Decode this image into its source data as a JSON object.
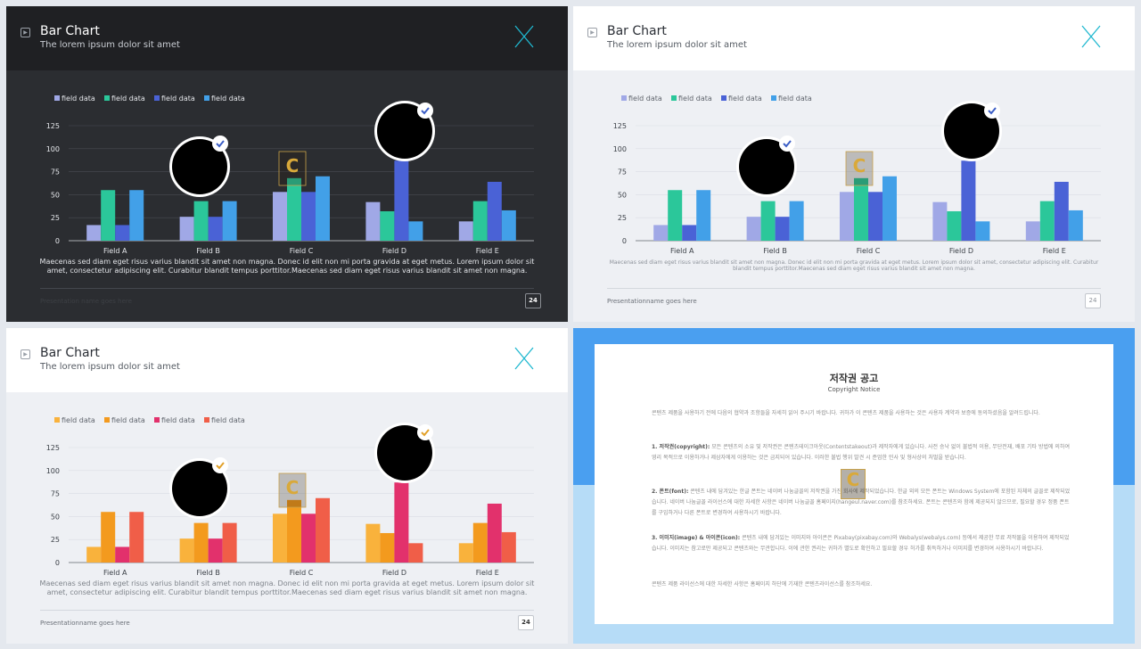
{
  "slides": [
    {
      "title": "Bar Chart",
      "subtitle": "The lorem ipsum dolor sit amet",
      "caption": "Maecenas sed diam eget risus varius blandit sit amet non magna. Donec id elit non mi porta gravida at eget metus. Lorem ipsum dolor sit amet, consectetur adipiscing elit. Curabitur blandit tempus porttitor.Maecenas sed diam eget risus varius blandit sit amet non magna.",
      "footer": "Presentation name goes here",
      "page": "24"
    },
    {
      "title": "Bar Chart",
      "subtitle": "The lorem ipsum dolor sit amet",
      "caption": "Maecenas sed diam eget risus varius blandit sit amet non magna. Donec id elit non mi porta gravida at eget metus. Lorem ipsum dolor sit amet, consectetur adipiscing elit. Curabitur blandit tempus porttitor.Maecenas sed diam eget risus varius blandit sit amet non magna.",
      "footer": "Presentationname goes here",
      "page": "24"
    },
    {
      "title": "Bar Chart",
      "subtitle": "The lorem ipsum dolor sit amet",
      "caption": "Maecenas sed diam eget risus varius blandit sit amet non magna. Donec id elit non mi porta gravida at eget metus. Lorem ipsum dolor sit amet, consectetur adipiscing elit. Curabitur blandit tempus porttitor.Maecenas sed diam eget risus varius blandit sit amet non magna.",
      "footer": "Presentationname goes here",
      "page": "24"
    }
  ],
  "copyright": {
    "title": "저작권 공고",
    "subtitle": "Copyright Notice",
    "intro": "콘텐츠 제품을 사용하기 전에 다음의 협약과 조항들을 자세히 읽어 주시기 바랍니다. 귀하가 이 콘텐츠 제품을 사용하는 것은 사용자 계약과 보증에 동의하셨음을 알려드립니다.",
    "p1_label": "1. 저작권(copyright):",
    "p1": "모든 콘텐츠의 소유 및 저작권은 콘텐츠테이크아웃(Contentstakeout)과 제작자에게 있습니다. 사전 승낙 없이 불법적 이용, 무단전재, 배포 기타 방법에 의하여 영리 목적으로 이용하거나 제삼자에게 이용하는 것은 금지되어 있습니다. 이러한 불법 행위 발견 시 준엄한 민사 및 형사상의 처벌을 받습니다.",
    "p2_label": "2. 폰트(font):",
    "p2": "콘텐츠 내에 담겨있는 한글 폰트는 네이버 나눔글꼴의 저작권을 가진 회사에 제작되었습니다. 한글 외의 모든 폰트는 Windows System에 포함된 자체의 글꼴로 제작되었습니다. 네이버 나눔글꼴 라이선스에 대한 자세한 사항은 네이버 나눔글꼴 홈페이지(hangeul.naver.com)를 참조하세요. 폰트는 콘텐츠와 함께 제공되지 않으므로, 필요할 경우 정품 폰트를 구입하거나 다른 폰트로 변경하여 사용하시기 바랍니다.",
    "p3_label": "3. 이미지(image) & 아이콘(icon):",
    "p3": "콘텐츠 내에 담겨있는 이미지와 아이콘은 Pixabay(pixabay.com)와 Webalys(webalys.com) 등에서 제공한 무료 저작물을 이용하여 제작되었습니다. 이미지는 참고로만 제공되고 콘텐츠와는 무관합니다. 이에 관한 권리는 귀하가 별도로 확인하고 필요할 경우 허가를 취득하거나 이미지를 변경하여 사용하시기 바랍니다.",
    "outro": "콘텐츠 제품 라이선스에 대한 자세한 사항은 홈페이지 하단에 기재한 콘텐츠라이선스를 참조하세요."
  },
  "colors": {
    "blue_set": [
      "#a0a8e6",
      "#2bc79a",
      "#4a62d6",
      "#42a0e8"
    ],
    "orange_set": [
      "#f9b23c",
      "#f39a1e",
      "#e2316c",
      "#f05e48"
    ],
    "accent_teal": "#1fb8d0"
  },
  "chart_data": [
    {
      "type": "bar",
      "categories": [
        "Field A",
        "Field B",
        "Field C",
        "Field D",
        "Field E"
      ],
      "series": [
        {
          "name": "field data",
          "values": [
            17,
            26,
            53,
            42,
            21
          ]
        },
        {
          "name": "field data",
          "values": [
            55,
            43,
            68,
            32,
            43
          ]
        },
        {
          "name": "field data",
          "values": [
            17,
            26,
            53,
            87,
            64
          ]
        },
        {
          "name": "field data",
          "values": [
            55,
            43,
            70,
            21,
            33
          ]
        }
      ],
      "yticks": [
        "0",
        "25",
        "50",
        "75",
        "100",
        "125"
      ],
      "ylim": [
        0,
        125
      ],
      "grid": true,
      "legend": "top-left"
    }
  ]
}
